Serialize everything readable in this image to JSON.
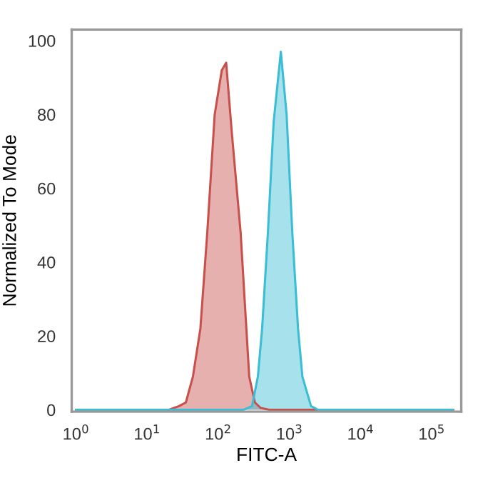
{
  "chart_data": {
    "type": "area",
    "xlabel": "FITC-A",
    "ylabel": "Normalized To Mode",
    "log": "x",
    "grid": false,
    "legend": false,
    "xlim": [
      0.87,
      260000
    ],
    "ylim": [
      -0.5,
      103
    ],
    "xticks": [
      {
        "value": 1,
        "label": "10$^{0}$"
      },
      {
        "value": 10,
        "label": "10$^{1}$"
      },
      {
        "value": 100,
        "label": "10$^{2}$"
      },
      {
        "value": 1000,
        "label": "10$^{3}$"
      },
      {
        "value": 10000,
        "label": "10$^{4}$"
      },
      {
        "value": 100000,
        "label": "10$^{5}$"
      }
    ],
    "yticks": [
      0,
      20,
      40,
      60,
      80,
      100
    ],
    "series": [
      {
        "color": "#c8504c",
        "x": [
          1,
          20,
          28,
          35,
          44,
          56,
          70,
          89,
          112,
          129,
          155,
          206,
          248,
          272,
          327,
          394,
          521,
          200000
        ],
        "values": [
          0,
          0,
          1,
          2,
          9,
          22,
          48,
          80,
          92,
          94,
          75,
          48,
          22,
          9,
          2,
          0.5,
          0,
          0
        ]
      },
      {
        "color": "#3bbdd4",
        "x": [
          1,
          226,
          298,
          360,
          413,
          498,
          600,
          757,
          912,
          1097,
          1321,
          1520,
          2010,
          2535,
          200000
        ],
        "values": [
          0,
          0,
          1,
          9,
          22,
          48,
          78,
          97,
          80,
          48,
          22,
          9,
          1,
          0,
          0
        ]
      }
    ]
  }
}
